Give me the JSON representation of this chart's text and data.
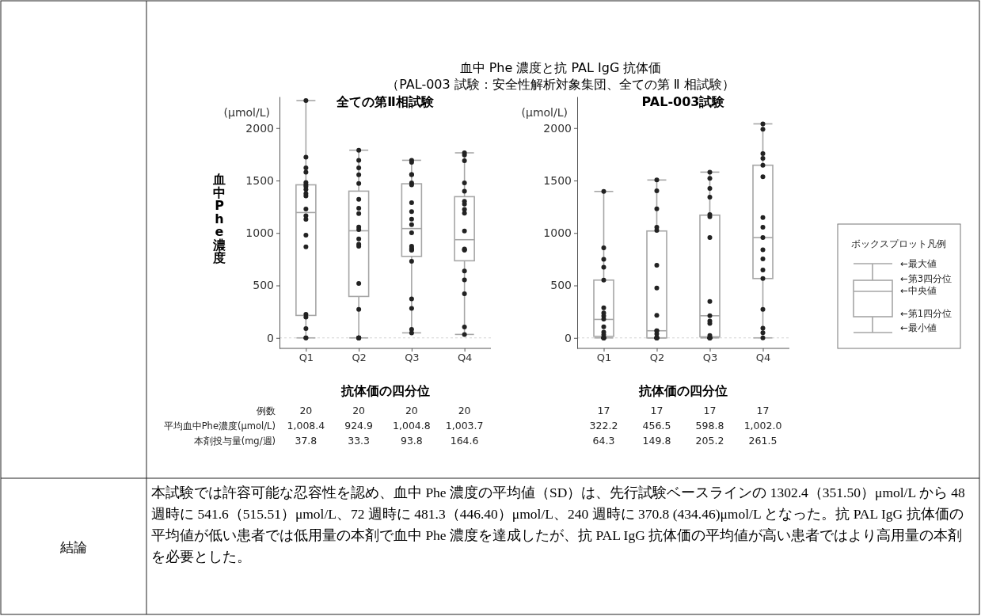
{
  "chart_data": [
    {
      "type": "other",
      "title": "血中 Phe 濃度と抗 PAL IgG 抗体価",
      "subtitle": "（PAL-003 試験：安全性解析対象集団、全ての第 Ⅱ 相試験）"
    },
    {
      "type": "box",
      "title": "全ての第Ⅱ相試験",
      "xlabel": "抗体価の四分位",
      "ylabel": "血中Phe濃度",
      "categories": [
        "Q1",
        "Q2",
        "Q3",
        "Q4"
      ],
      "ylim": [
        -100,
        2300
      ],
      "yticks": [
        0,
        500,
        1000,
        1500,
        2000
      ],
      "marker": "circle",
      "ref_lines": [
        {
          "axis": "y",
          "value": 0,
          "color": "#c8c8c8",
          "line_style": "dashed"
        }
      ],
      "series": [
        {
          "type": "box",
          "color": "#a6a6a6",
          "boxes": [
            {
              "low": 0,
              "q1": 214,
              "median": 1195,
              "q3": 1459,
              "high": 2262
            },
            {
              "low": 0,
              "q1": 395,
              "median": 1021,
              "q3": 1399,
              "high": 1789
            },
            {
              "low": 48,
              "q1": 777,
              "median": 1042,
              "q3": 1469,
              "high": 1693
            },
            {
              "low": 33,
              "q1": 735,
              "median": 936,
              "q3": 1346,
              "high": 1764
            }
          ]
        },
        {
          "type": "scatter",
          "color": "#222222",
          "x": [
            "Q1",
            "Q1",
            "Q1",
            "Q1",
            "Q1",
            "Q1",
            "Q1",
            "Q1",
            "Q1",
            "Q1",
            "Q1",
            "Q1",
            "Q1",
            "Q1",
            "Q1",
            "Q1",
            "Q1",
            "Q1",
            "Q1",
            "Q1",
            "Q2",
            "Q2",
            "Q2",
            "Q2",
            "Q2",
            "Q2",
            "Q2",
            "Q2",
            "Q2",
            "Q2",
            "Q2",
            "Q2",
            "Q2",
            "Q2",
            "Q2",
            "Q2",
            "Q2",
            "Q2",
            "Q2",
            "Q2",
            "Q3",
            "Q3",
            "Q3",
            "Q3",
            "Q3",
            "Q3",
            "Q3",
            "Q3",
            "Q3",
            "Q3",
            "Q3",
            "Q3",
            "Q3",
            "Q3",
            "Q3",
            "Q3",
            "Q3",
            "Q3",
            "Q3",
            "Q3",
            "Q4",
            "Q4",
            "Q4",
            "Q4",
            "Q4",
            "Q4",
            "Q4",
            "Q4",
            "Q4",
            "Q4",
            "Q4",
            "Q4",
            "Q4",
            "Q4",
            "Q4",
            "Q4",
            "Q4",
            "Q4"
          ],
          "values": [
            2262,
            1723,
            1620,
            1580,
            1482,
            1460,
            1444,
            1416,
            1376,
            1353,
            1228,
            1165,
            1130,
            979,
            868,
            224,
            199,
            88,
            0,
            0,
            1789,
            1693,
            1620,
            1555,
            1472,
            1321,
            1235,
            1185,
            1057,
            1032,
            943,
            893,
            873,
            518,
            272,
            0,
            0,
            0,
            0,
            0,
            1693,
            1673,
            1557,
            1557,
            1477,
            1459,
            1288,
            1203,
            1132,
            1079,
            1001,
            873,
            855,
            840,
            835,
            730,
            372,
            282,
            81,
            48,
            1764,
            1744,
            1688,
            1477,
            1399,
            1301,
            1276,
            1225,
            1188,
            1019,
            848,
            838,
            637,
            553,
            420,
            103,
            33,
            838
          ]
        }
      ],
      "annotations": [
        "(μmol/L)",
        "例数",
        "平均血中Phe濃度(μmol/L)",
        "本剤投与量(mg/週)",
        "20",
        "20",
        "20",
        "20",
        "1,008.4",
        "924.9",
        "1,004.8",
        "1,003.7",
        "37.8",
        "33.3",
        "93.8",
        "164.6"
      ]
    },
    {
      "type": "box",
      "title": "PAL-003試験",
      "xlabel": "抗体価の四分位",
      "categories": [
        "Q1",
        "Q2",
        "Q3",
        "Q4"
      ],
      "ylim": [
        -100,
        2300
      ],
      "yticks": [
        0,
        500,
        1000,
        1500,
        2000
      ],
      "marker": "circle",
      "ref_lines": [
        {
          "axis": "y",
          "value": 0,
          "color": "#c8c8c8",
          "line_style": "dashed"
        }
      ],
      "series": [
        {
          "type": "box",
          "color": "#a6a6a6",
          "boxes": [
            {
              "low": 0,
              "q1": 15,
              "median": 176,
              "q3": 551,
              "high": 1396
            },
            {
              "low": 0,
              "q1": 0,
              "median": 68,
              "q3": 1019,
              "high": 1505
            },
            {
              "low": 0,
              "q1": 10,
              "median": 211,
              "q3": 1170,
              "high": 1580
            },
            {
              "low": 0,
              "q1": 566,
              "median": 956,
              "q3": 1646,
              "high": 2040
            }
          ]
        },
        {
          "type": "scatter",
          "color": "#222222",
          "x": [
            "Q1",
            "Q1",
            "Q1",
            "Q1",
            "Q1",
            "Q1",
            "Q1",
            "Q1",
            "Q1",
            "Q1",
            "Q1",
            "Q1",
            "Q1",
            "Q1",
            "Q1",
            "Q1",
            "Q1",
            "Q2",
            "Q2",
            "Q2",
            "Q2",
            "Q2",
            "Q2",
            "Q2",
            "Q2",
            "Q2",
            "Q2",
            "Q2",
            "Q2",
            "Q2",
            "Q2",
            "Q2",
            "Q2",
            "Q2",
            "Q3",
            "Q3",
            "Q3",
            "Q3",
            "Q3",
            "Q3",
            "Q3",
            "Q3",
            "Q3",
            "Q3",
            "Q3",
            "Q3",
            "Q3",
            "Q3",
            "Q3",
            "Q3",
            "Q3",
            "Q4",
            "Q4",
            "Q4",
            "Q4",
            "Q4",
            "Q4",
            "Q4",
            "Q4",
            "Q4",
            "Q4",
            "Q4",
            "Q4",
            "Q4",
            "Q4",
            "Q4",
            "Q4",
            "Q4"
          ],
          "values": [
            1396,
            858,
            750,
            674,
            551,
            287,
            237,
            209,
            179,
            106,
            55,
            30,
            0,
            0,
            0,
            0,
            0,
            1505,
            1401,
            1230,
            1054,
            1024,
            692,
            476,
            216,
            68,
            68,
            38,
            0,
            0,
            0,
            0,
            0,
            0,
            1580,
            1520,
            1424,
            1341,
            1175,
            1155,
            956,
            347,
            211,
            161,
            138,
            23,
            0,
            0,
            0,
            0,
            0,
            2040,
            1988,
            1756,
            1711,
            1646,
            1535,
            1147,
            1054,
            956,
            840,
            752,
            647,
            566,
            272,
            93,
            50,
            0
          ]
        }
      ],
      "annotations": [
        "(μmol/L)",
        "17",
        "17",
        "17",
        "17",
        "322.2",
        "456.5",
        "598.8",
        "1,002.0",
        "64.3",
        "149.8",
        "205.2",
        "261.5"
      ]
    },
    {
      "type": "other",
      "title": "ボックスプロット凡例",
      "annotations": [
        "←最大値",
        "←第3四分位",
        "←中央値",
        "←第1四分位",
        "←最小値"
      ]
    },
    {
      "type": "other",
      "annotations": [
        "結論",
        "本試験では許容可能な忍容性を認め、血中 Phe 濃度の平均値（SD）は、先行試験ベースラインの 1302.4（351.50）μmol/L から 48 週時に 541.6（515.51）μmol/L、72 週時に 481.3（446.40）μmol/L、240 週時に 370.8 (434.46)μmol/L となった。抗 PAL IgG 抗体価の平均値が低い患者では低用量の本剤で血中 Phe 濃度を達成したが、抗 PAL IgG 抗体価の平均値が高い患者ではより高用量の本剤を必要とした。"
      ]
    }
  ]
}
